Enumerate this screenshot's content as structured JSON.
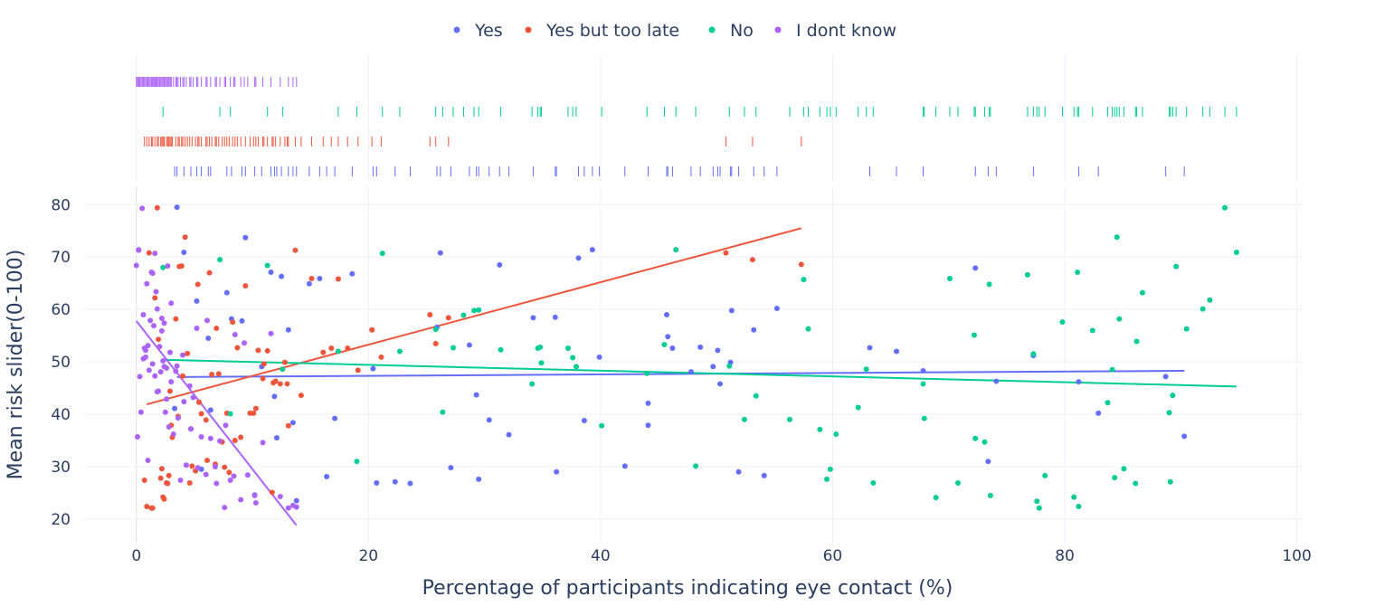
{
  "chart_data": {
    "type": "scatter",
    "xlabel": "Percentage of participants indicating eye contact (%)",
    "ylabel": "Mean risk slider(0-100)",
    "xlim": [
      -4.5,
      100.5
    ],
    "ylim": [
      15.5,
      83.5
    ],
    "xticks": [
      0,
      20,
      40,
      60,
      80,
      100
    ],
    "yticks": [
      20,
      30,
      40,
      50,
      60,
      70,
      80
    ],
    "grid": true,
    "legend_position": "top-center",
    "marginal_x": "rug",
    "trendlines": "ols",
    "series": [
      {
        "name": "Yes",
        "color": "#636efa",
        "x": [
          3.5,
          6.2,
          7.8,
          9.1,
          11.6,
          12.5,
          13.8,
          17.1,
          18.6,
          20.4,
          22.3,
          25.9,
          26.2,
          27.1,
          28.7,
          29.3,
          30.4,
          31.3,
          32.1,
          34.2,
          36.1,
          38.1,
          39.3,
          39.9,
          42.1,
          44.1,
          45.7,
          46.2,
          48.6,
          49.7,
          50.1,
          51.3,
          53.2,
          63.2,
          65.5,
          67.8,
          72.3,
          73.4,
          74.1,
          77.3,
          81.2,
          82.9,
          88.7,
          90.3,
          5.2,
          4.1,
          8.2,
          9.4,
          13.1,
          16.4,
          23.6,
          14.9,
          10.2,
          15.8,
          29.5,
          38.6,
          47.8,
          50.3,
          51.2,
          51.9,
          54.1,
          55.2,
          5.6,
          12.1,
          10.8,
          4.7,
          3.3,
          6.4,
          11.9,
          36.2,
          44.1,
          13.5,
          20.7,
          45.8
        ],
        "y": [
          79.5,
          54.5,
          63.2,
          57.8,
          67.1,
          66.3,
          23.5,
          39.2,
          66.8,
          48.7,
          27.1,
          56.6,
          70.8,
          29.8,
          53.2,
          43.7,
          38.9,
          68.5,
          36.1,
          58.4,
          58.5,
          69.8,
          71.4,
          50.9,
          30.1,
          37.9,
          59.0,
          52.6,
          52.8,
          49.1,
          52.2,
          59.8,
          56.1,
          52.7,
          52.0,
          48.3,
          67.9,
          31.0,
          46.3,
          51.2,
          46.2,
          40.2,
          47.2,
          35.8,
          61.6,
          70.9,
          58.2,
          73.7,
          56.1,
          28.1,
          26.8,
          64.9,
          24.6,
          65.9,
          27.6,
          38.8,
          48.1,
          45.8,
          49.9,
          29.0,
          28.3,
          60.2,
          29.5,
          35.5,
          49.1,
          37.2,
          41.1,
          40.8,
          43.4,
          29.0,
          42.1,
          38.4,
          26.9,
          54.8
        ],
        "trend": {
          "x": [
            3.5,
            90.3
          ],
          "y": [
            47.1,
            48.3
          ]
        }
      },
      {
        "name": "Yes but too late",
        "color": "#ef553b",
        "x": [
          0.9,
          1.1,
          1.4,
          1.8,
          2.1,
          2.3,
          2.6,
          2.8,
          3.1,
          3.4,
          3.7,
          4.0,
          4.4,
          4.8,
          5.3,
          5.6,
          6.1,
          6.5,
          6.9,
          7.4,
          7.8,
          8.3,
          8.7,
          9.4,
          10.1,
          10.5,
          11.3,
          11.8,
          12.4,
          13.1,
          13.7,
          14.2,
          15.1,
          16.1,
          16.8,
          17.4,
          18.2,
          19.1,
          20.3,
          21.1,
          25.3,
          25.8,
          26.9,
          50.8,
          53.1,
          57.3,
          1.6,
          2.2,
          2.9,
          3.6,
          4.2,
          5.1,
          6.3,
          7.1,
          8.0,
          9.0,
          10.3,
          11.0,
          12.0,
          13.0,
          1.3,
          2.4,
          3.0,
          3.9,
          4.6,
          5.4,
          6.0,
          6.8,
          7.6,
          8.5,
          9.8,
          10.9,
          11.7,
          12.8,
          0.7,
          1.9,
          2.7
        ],
        "y": [
          22.4,
          70.8,
          22.1,
          79.4,
          27.8,
          24.2,
          26.9,
          28.3,
          35.6,
          58.2,
          68.2,
          47.3,
          51.6,
          30.1,
          64.8,
          40.1,
          31.2,
          47.6,
          56.4,
          34.7,
          40.2,
          57.6,
          52.7,
          64.5,
          40.2,
          52.2,
          52.1,
          46.0,
          45.8,
          37.8,
          71.3,
          43.6,
          65.9,
          51.8,
          52.6,
          65.8,
          52.6,
          48.4,
          56.1,
          50.9,
          59.0,
          53.5,
          58.4,
          70.8,
          69.5,
          68.6,
          62.2,
          29.6,
          44.4,
          39.6,
          73.8,
          29.2,
          67.0,
          47.7,
          28.9,
          35.6,
          41.1,
          49.6,
          46.3,
          45.8,
          22.1,
          23.8,
          37.9,
          68.3,
          26.9,
          42.3,
          38.9,
          30.5,
          29.9,
          35.0,
          40.2,
          46.8,
          25.1,
          49.9,
          27.4,
          54.3,
          26.8
        ],
        "trend": {
          "x": [
            0.9,
            57.3
          ],
          "y": [
            41.9,
            75.5
          ]
        }
      },
      {
        "name": "No",
        "color": "#00cc96",
        "x": [
          2.3,
          7.2,
          8.1,
          11.3,
          12.6,
          17.4,
          19.0,
          21.2,
          22.7,
          25.8,
          26.4,
          27.3,
          28.2,
          29.1,
          29.5,
          31.4,
          34.1,
          34.6,
          34.9,
          37.2,
          37.6,
          37.9,
          40.1,
          44.0,
          45.5,
          46.5,
          48.2,
          51.1,
          52.4,
          53.4,
          56.3,
          57.5,
          57.9,
          58.9,
          59.5,
          59.8,
          62.2,
          63.5,
          67.8,
          67.9,
          68.9,
          70.1,
          72.2,
          72.3,
          73.1,
          73.6,
          76.8,
          77.3,
          77.6,
          77.8,
          78.3,
          79.8,
          80.8,
          81.1,
          82.4,
          83.7,
          84.1,
          84.3,
          84.7,
          85.1,
          86.2,
          86.7,
          89.0,
          89.3,
          89.6,
          90.5,
          91.9,
          92.5,
          93.8,
          94.8,
          84.5,
          70.8,
          73.5,
          81.2,
          89.1,
          34.8,
          60.3,
          86.1,
          62.9
        ],
        "y": [
          68.0,
          69.5,
          40.1,
          68.4,
          48.6,
          52.0,
          31.0,
          70.7,
          52.0,
          56.2,
          40.4,
          52.7,
          58.9,
          59.8,
          59.9,
          52.3,
          45.8,
          52.6,
          49.8,
          52.6,
          50.8,
          49.1,
          37.8,
          47.8,
          53.3,
          71.4,
          30.1,
          49.2,
          39.0,
          43.5,
          39.0,
          65.7,
          56.3,
          37.1,
          27.6,
          29.5,
          41.3,
          26.9,
          45.8,
          39.2,
          24.1,
          65.9,
          55.1,
          35.4,
          34.7,
          24.5,
          66.6,
          51.5,
          23.4,
          22.1,
          28.3,
          57.6,
          24.2,
          67.1,
          56.0,
          42.2,
          48.5,
          27.9,
          58.2,
          29.6,
          53.9,
          63.2,
          40.3,
          43.6,
          68.2,
          56.3,
          60.1,
          61.8,
          79.4,
          70.9,
          73.8,
          26.9,
          64.8,
          22.4,
          27.1,
          52.8,
          36.2,
          26.8,
          48.6
        ],
        "trend": {
          "x": [
            2.3,
            94.8
          ],
          "y": [
            50.4,
            45.3
          ]
        }
      },
      {
        "name": "I dont know",
        "color": "#ab63fa",
        "x": [
          0.0,
          0.1,
          0.2,
          0.3,
          0.4,
          0.5,
          0.6,
          0.7,
          0.8,
          0.9,
          1.0,
          1.1,
          1.2,
          1.3,
          1.4,
          1.5,
          1.6,
          1.7,
          1.8,
          1.9,
          2.0,
          2.1,
          2.2,
          2.3,
          2.4,
          2.5,
          2.6,
          2.7,
          2.8,
          2.9,
          3.0,
          3.2,
          3.4,
          3.6,
          3.8,
          4.0,
          4.3,
          4.6,
          4.9,
          5.2,
          5.6,
          6.0,
          6.4,
          6.8,
          7.2,
          7.6,
          8.1,
          8.5,
          9.0,
          9.6,
          10.2,
          10.9,
          11.6,
          12.4,
          13.1,
          13.5,
          13.8,
          0.2,
          0.6,
          1.0,
          1.4,
          1.8,
          2.2,
          2.6,
          3.0,
          3.5,
          4.1,
          4.7,
          5.3,
          6.1,
          6.9,
          7.7,
          8.4,
          9.3,
          10.3,
          0.8,
          1.6,
          2.4
        ],
        "y": [
          68.4,
          35.7,
          71.4,
          47.2,
          40.4,
          79.3,
          59.0,
          52.6,
          50.9,
          64.9,
          53.1,
          48.4,
          57.9,
          67.1,
          49.6,
          56.9,
          70.7,
          63.4,
          60.1,
          44.4,
          52.9,
          48.1,
          58.3,
          50.2,
          49.1,
          40.4,
          48.8,
          68.3,
          37.6,
          51.8,
          46.2,
          36.2,
          48.2,
          39.3,
          27.4,
          51.3,
          30.3,
          45.4,
          43.2,
          56.4,
          35.7,
          28.5,
          35.4,
          30.0,
          34.9,
          22.2,
          27.4,
          55.2,
          23.7,
          28.4,
          24.5,
          34.6,
          55.4,
          24.3,
          22.1,
          22.6,
          22.3,
          71.3,
          50.6,
          31.2,
          66.9,
          44.3,
          55.9,
          42.9,
          61.2,
          49.2,
          42.4,
          37.2,
          29.8,
          57.9,
          26.8,
          37.9,
          28.2,
          53.6,
          23.1,
          52.2,
          47.3,
          57.4
        ],
        "trend": {
          "x": [
            0.0,
            13.8
          ],
          "y": [
            57.8,
            18.8
          ]
        }
      }
    ]
  }
}
